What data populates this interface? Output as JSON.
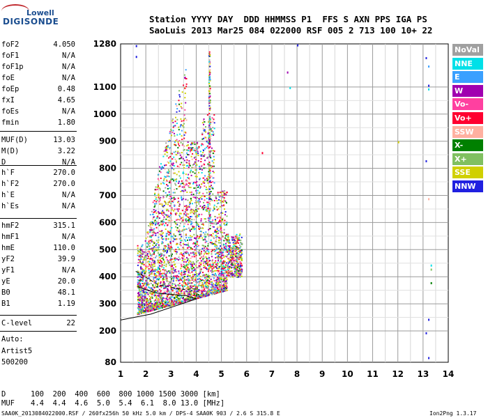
{
  "logo": {
    "line1": "Lowell",
    "line2": "DIGISONDE"
  },
  "header": {
    "line1": "Station YYYY DAY  DDD HHMMSS P1  FFS S AXN PPS IGA PS",
    "line2": "SaoLuis 2013 Mar25 084 022000 RSF 005 2 713 100 10+ 22"
  },
  "params": [
    {
      "label": "foF2",
      "value": "4.050"
    },
    {
      "label": "foF1",
      "value": "N/A"
    },
    {
      "label": "foF1p",
      "value": "N/A"
    },
    {
      "label": "foE",
      "value": "N/A"
    },
    {
      "label": "foEp",
      "value": "0.48"
    },
    {
      "label": "fxI",
      "value": "4.65"
    },
    {
      "label": "foEs",
      "value": "N/A"
    },
    {
      "label": "fmin",
      "value": "1.80"
    },
    {
      "label": "MUF(D)",
      "value": "13.03"
    },
    {
      "label": "M(D)",
      "value": "3.22"
    },
    {
      "label": "D",
      "value": "N/A"
    },
    {
      "label": "h`F",
      "value": "270.0"
    },
    {
      "label": "h`F2",
      "value": "270.0"
    },
    {
      "label": "h`E",
      "value": "N/A"
    },
    {
      "label": "h`Es",
      "value": "N/A"
    },
    {
      "label": "hmF2",
      "value": "315.1"
    },
    {
      "label": "hmF1",
      "value": "N/A"
    },
    {
      "label": "hmE",
      "value": "110.0"
    },
    {
      "label": "yF2",
      "value": "39.9"
    },
    {
      "label": "yF1",
      "value": "N/A"
    },
    {
      "label": "yE",
      "value": "20.0"
    },
    {
      "label": "B0",
      "value": "48.1"
    },
    {
      "label": "B1",
      "value": "1.19"
    },
    {
      "label": "C-level",
      "value": "22"
    }
  ],
  "auto": {
    "line1": "Auto:",
    "line2": "Artist5",
    "line3": "500200"
  },
  "footer": {
    "d_label": "D",
    "d_values": "100  200  400  600  800 1000 1500 3000 [km]",
    "muf_label": "MUF",
    "muf_values": "4.4  4.4  4.6  5.0  5.4  6.1  8.0 13.0 [MHz]",
    "file_info": "SAA0K_2013084022000.RSF / 260fx256h 50 kHz 5.0 km / DPS-4 SAA0K 903 / 2.6 S 315.8 E",
    "version": "Ion2Png 1.3.17"
  },
  "legend": [
    {
      "label": "NoVal",
      "color": "#a0a0a0"
    },
    {
      "label": "NNE",
      "color": "#00e0e8"
    },
    {
      "label": "E",
      "color": "#3aa0ff"
    },
    {
      "label": "W",
      "color": "#a000b0"
    },
    {
      "label": "Vo-",
      "color": "#ff40a0"
    },
    {
      "label": "Vo+",
      "color": "#ff0030"
    },
    {
      "label": "SSW",
      "color": "#ffb0a0"
    },
    {
      "label": "X-",
      "color": "#008000"
    },
    {
      "label": "X+",
      "color": "#80c060"
    },
    {
      "label": "SSE",
      "color": "#d0d000"
    },
    {
      "label": "NNW",
      "color": "#2020e0"
    }
  ],
  "chart_data": {
    "type": "scatter",
    "x_ticks": [
      "1",
      "2",
      "3",
      "4",
      "5",
      "6",
      "7",
      "8",
      "9",
      "10",
      "11",
      "12",
      "13",
      "14"
    ],
    "y_ticks": [
      "80",
      "200",
      "300",
      "400",
      "500",
      "600",
      "700",
      "800",
      "900",
      "1000",
      "1100",
      "1280"
    ],
    "xlim": [
      1,
      14
    ],
    "ylim": [
      80,
      1280
    ],
    "grid": true,
    "legend_position": "right",
    "echo_region": {
      "fmin": 1.5,
      "fmax": 5.8,
      "hmin": 250,
      "hmax": 1260
    },
    "trace_lines": [
      {
        "style": "solid",
        "points": [
          [
            1,
            240
          ],
          [
            2.2,
            262
          ],
          [
            4.0,
            318
          ],
          [
            3.6,
            330
          ],
          [
            2.4,
            340
          ],
          [
            1.7,
            362
          ]
        ]
      },
      {
        "style": "dashed",
        "points": [
          [
            1.6,
            420
          ],
          [
            2.5,
            370
          ],
          [
            3.5,
            353
          ],
          [
            4.0,
            355
          ]
        ]
      }
    ],
    "isolated_echoes": [
      {
        "x": 1.6,
        "y": 1275,
        "color": "#2020e0"
      },
      {
        "x": 1.6,
        "y": 1230,
        "color": "#2020e0"
      },
      {
        "x": 7.6,
        "y": 1165,
        "color": "#a000b0"
      },
      {
        "x": 7.7,
        "y": 1100,
        "color": "#00e0e8"
      },
      {
        "x": 8.0,
        "y": 1278,
        "color": "#2020e0"
      },
      {
        "x": 6.6,
        "y": 860,
        "color": "#ff0030"
      },
      {
        "x": 12.0,
        "y": 900,
        "color": "#d0d000"
      },
      {
        "x": 13.1,
        "y": 1225,
        "color": "#2020e0"
      },
      {
        "x": 13.2,
        "y": 1190,
        "color": "#3aa0ff"
      },
      {
        "x": 13.2,
        "y": 1110,
        "color": "#2020e0"
      },
      {
        "x": 13.2,
        "y": 1095,
        "color": "#00e0e8"
      },
      {
        "x": 13.1,
        "y": 830,
        "color": "#2020e0"
      },
      {
        "x": 13.2,
        "y": 690,
        "color": "#ffb0a0"
      },
      {
        "x": 13.3,
        "y": 445,
        "color": "#00e0e8"
      },
      {
        "x": 13.3,
        "y": 430,
        "color": "#80c060"
      },
      {
        "x": 13.3,
        "y": 380,
        "color": "#008000"
      },
      {
        "x": 13.2,
        "y": 245,
        "color": "#2020e0"
      },
      {
        "x": 13.1,
        "y": 195,
        "color": "#2020e0"
      },
      {
        "x": 13.2,
        "y": 100,
        "color": "#2020e0"
      }
    ]
  }
}
